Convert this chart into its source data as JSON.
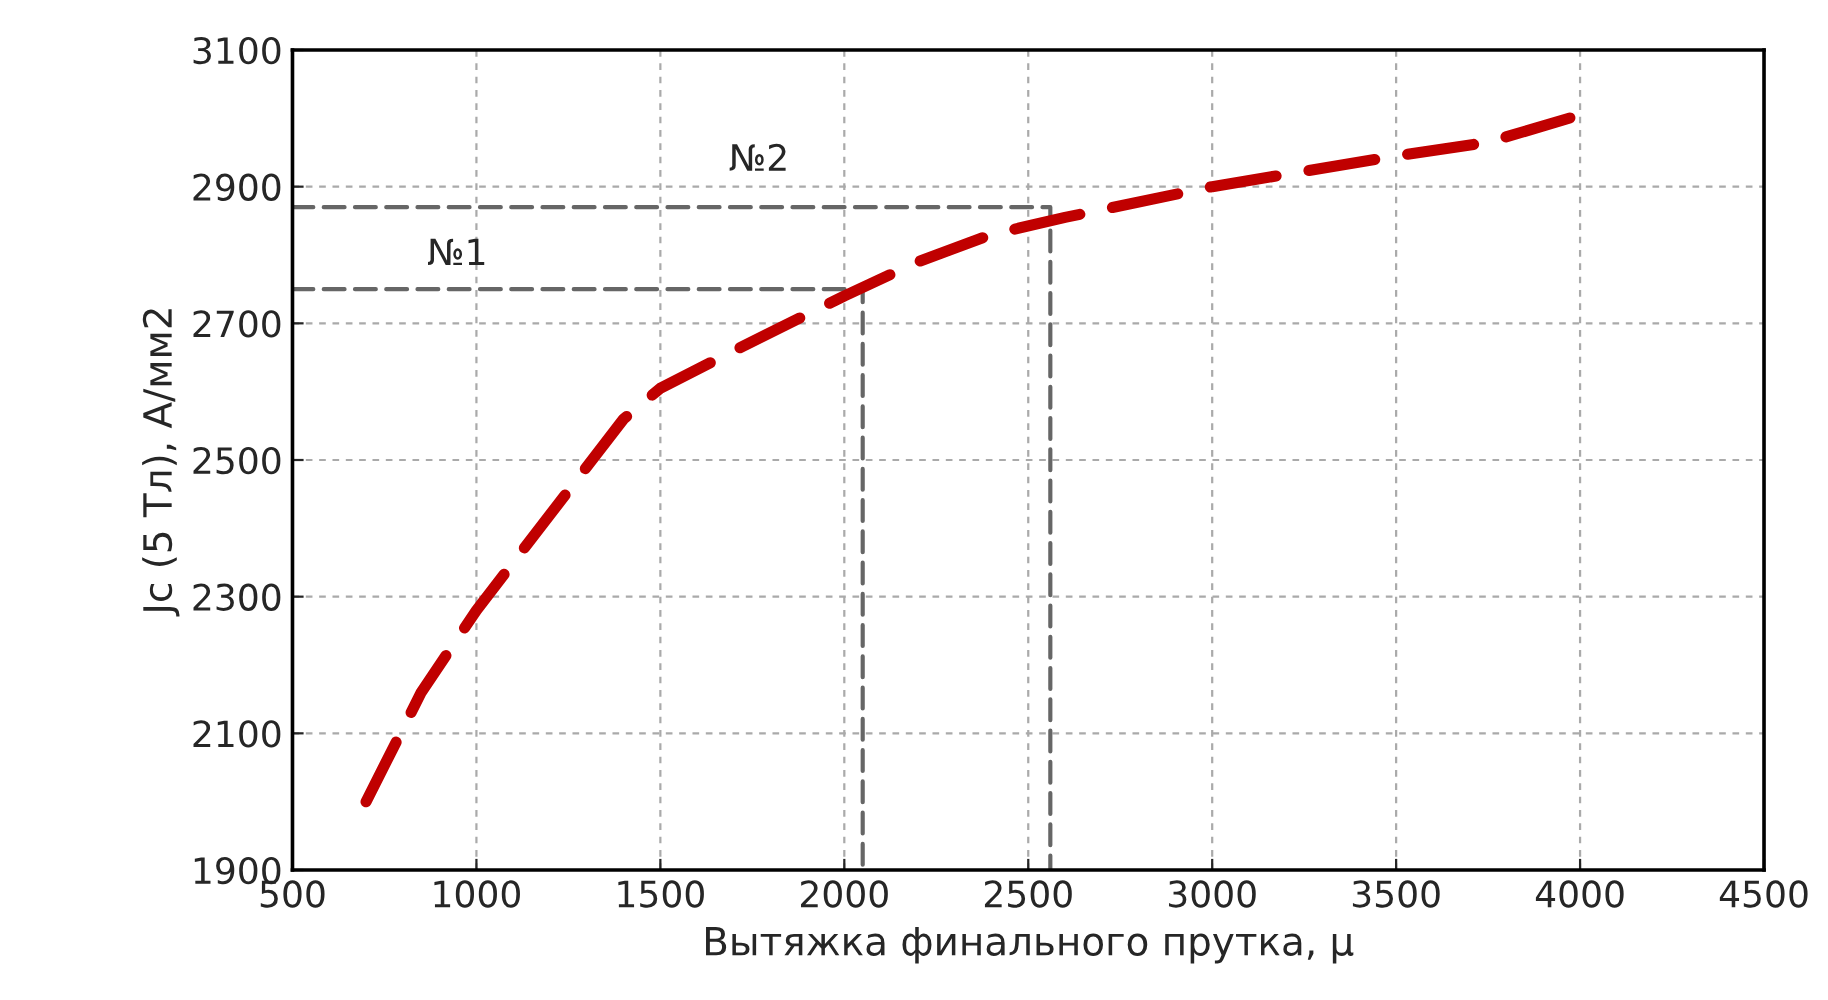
{
  "chart_data": {
    "type": "line",
    "xlabel": "Вытяжка финального прутка, μ",
    "ylabel": "Jc (5 Тл), А/мм2",
    "series": [
      {
        "color": "#c00000",
        "line_style": "dashed",
        "x": [
          700,
          850,
          1000,
          1200,
          1400,
          1500,
          1700,
          2000,
          2200,
          2400,
          2600,
          3000,
          3500,
          3750,
          4000
        ],
        "values": [
          2000,
          2160,
          2280,
          2420,
          2560,
          2605,
          2660,
          2740,
          2790,
          2830,
          2855,
          2900,
          2945,
          2965,
          3005
        ]
      },
      {
        "color": "#666666",
        "line_style": "dashed",
        "x": [
          500,
          2050,
          2050
        ],
        "values": [
          2750,
          2750,
          1900
        ]
      },
      {
        "color": "#666666",
        "line_style": "dashed",
        "x": [
          500,
          2560,
          2560
        ],
        "values": [
          2870,
          2870,
          1900
        ]
      }
    ],
    "annotations": [
      "№1",
      "№2"
    ],
    "xlim": [
      500,
      4500
    ],
    "xticks": [
      500,
      1000,
      1500,
      2000,
      2500,
      3000,
      3500,
      4000,
      4500
    ],
    "ylim": [
      1900,
      3100
    ],
    "yticks": [
      1900,
      2100,
      2300,
      2500,
      2700,
      2900,
      3100
    ],
    "grid": true,
    "marker": "none"
  }
}
